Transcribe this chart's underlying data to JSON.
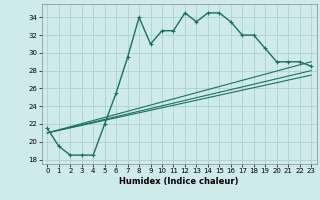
{
  "xlabel": "Humidex (Indice chaleur)",
  "bg_color": "#ceeaea",
  "grid_color": "#aacccc",
  "line_color": "#1a7060",
  "xlim": [
    -0.5,
    23.5
  ],
  "ylim": [
    17.5,
    35.5
  ],
  "yticks": [
    18,
    20,
    22,
    24,
    26,
    28,
    30,
    32,
    34
  ],
  "xticks": [
    0,
    1,
    2,
    3,
    4,
    5,
    6,
    7,
    8,
    9,
    10,
    11,
    12,
    13,
    14,
    15,
    16,
    17,
    18,
    19,
    20,
    21,
    22,
    23
  ],
  "main_curve": {
    "x": [
      0,
      1,
      2,
      3,
      4,
      5,
      6,
      7,
      8,
      9,
      10,
      11,
      12,
      13,
      14,
      15,
      16,
      17,
      18,
      19,
      20,
      21,
      22,
      23
    ],
    "y": [
      21.5,
      19.5,
      18.5,
      18.5,
      18.5,
      22.0,
      25.5,
      29.5,
      34.0,
      31.0,
      32.5,
      32.5,
      34.5,
      33.5,
      34.5,
      34.5,
      33.5,
      32.0,
      32.0,
      30.5,
      29.0,
      29.0,
      29.0,
      28.5
    ]
  },
  "trend_lines": [
    {
      "x": [
        0,
        23
      ],
      "y": [
        21.0,
        29.0
      ]
    },
    {
      "x": [
        0,
        23
      ],
      "y": [
        21.0,
        28.0
      ]
    },
    {
      "x": [
        0,
        23
      ],
      "y": [
        21.0,
        27.5
      ]
    }
  ]
}
